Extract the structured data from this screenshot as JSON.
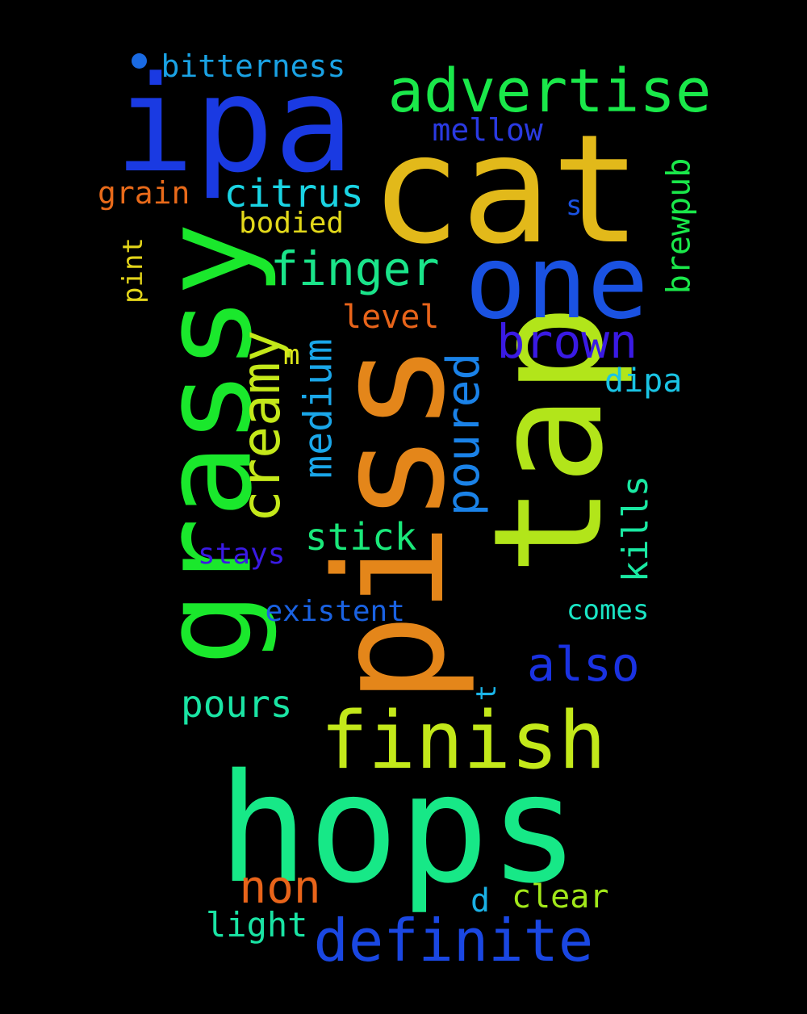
{
  "background": "#000000",
  "words": [
    {
      "id": "hops",
      "text": "hops",
      "color": "#17e887"
    },
    {
      "id": "piss",
      "text": "piss",
      "color": "#e4861a"
    },
    {
      "id": "tap",
      "text": "tap",
      "color": "#b2e51a"
    },
    {
      "id": "cat",
      "text": "cat",
      "color": "#e2b91a"
    },
    {
      "id": "ipa",
      "text": "ipa",
      "color": "#1a3ae2"
    },
    {
      "id": "grassy",
      "text": "grassy",
      "color": "#1ae82c"
    },
    {
      "id": "one",
      "text": "one",
      "color": "#1a52e2"
    },
    {
      "id": "finish",
      "text": "finish",
      "color": "#c3e81a"
    },
    {
      "id": "definite",
      "text": "definite",
      "color": "#1a47e2"
    },
    {
      "id": "advertise",
      "text": "advertise",
      "color": "#1ae84a"
    },
    {
      "id": "finger",
      "text": "finger",
      "color": "#1ae48a"
    },
    {
      "id": "creamy",
      "text": "creamy",
      "color": "#c4e81a"
    },
    {
      "id": "brown",
      "text": "brown",
      "color": "#3a1ae4"
    },
    {
      "id": "also",
      "text": "also",
      "color": "#1a32e2"
    },
    {
      "id": "non",
      "text": "non",
      "color": "#e8641a"
    },
    {
      "id": "poured",
      "text": "poured",
      "color": "#1a82e8"
    },
    {
      "id": "medium",
      "text": "medium",
      "color": "#1aa6e8"
    },
    {
      "id": "citrus",
      "text": "citrus",
      "color": "#1ad4e4"
    },
    {
      "id": "pours",
      "text": "pours",
      "color": "#1ae4a4"
    },
    {
      "id": "stick",
      "text": "stick",
      "color": "#1ae87a"
    },
    {
      "id": "kills",
      "text": "kills",
      "color": "#1ae8a2"
    },
    {
      "id": "brewpub",
      "text": "brewpub",
      "color": "#1ae84a"
    },
    {
      "id": "bitterness",
      "text": "bitterness",
      "color": "#1aa2e4"
    },
    {
      "id": "mellow",
      "text": "mellow",
      "color": "#2a3ae2"
    },
    {
      "id": "level",
      "text": "level",
      "color": "#e8641a"
    },
    {
      "id": "dipa",
      "text": "dipa",
      "color": "#1ac4e4"
    },
    {
      "id": "stays",
      "text": "stays",
      "color": "#3a1ae4"
    },
    {
      "id": "existent",
      "text": "existent",
      "color": "#1a62e2"
    },
    {
      "id": "comes",
      "text": "comes",
      "color": "#1ae4c4"
    },
    {
      "id": "clear",
      "text": "clear",
      "color": "#a2e81a"
    },
    {
      "id": "light",
      "text": "light",
      "color": "#1ae4a4"
    },
    {
      "id": "grain",
      "text": "grain",
      "color": "#e86a1a"
    },
    {
      "id": "bodied",
      "text": "bodied",
      "color": "#e2d81a"
    },
    {
      "id": "pint",
      "text": "pint",
      "color": "#e2d41a"
    },
    {
      "id": "m",
      "text": "m",
      "color": "#dde81a"
    },
    {
      "id": "s",
      "text": "s",
      "color": "#1a52e2"
    },
    {
      "id": "t",
      "text": "t",
      "color": "#1ab4e8"
    },
    {
      "id": "d",
      "text": "d",
      "color": "#1ab0e4"
    }
  ],
  "dot_color": "#1a6ae2"
}
